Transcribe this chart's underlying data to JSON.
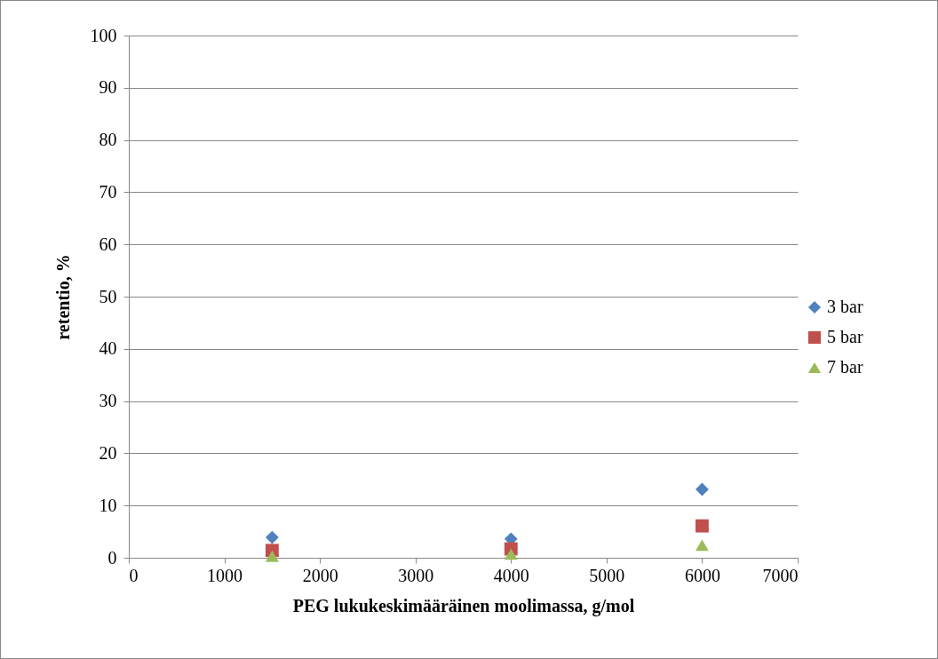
{
  "chart_data": {
    "type": "scatter",
    "xlabel": "PEG lukukeskimääräinen moolimassa,  g/mol",
    "ylabel": "retentio, %",
    "x": [
      1500,
      4000,
      6000
    ],
    "series": [
      {
        "name": "3 bar",
        "color": "#4f81bd",
        "marker": "diamond",
        "values": [
          3.9,
          3.6,
          13.1
        ]
      },
      {
        "name": "5 bar",
        "color": "#c0504d",
        "marker": "square",
        "values": [
          1.4,
          1.7,
          6.1
        ]
      },
      {
        "name": "7 bar",
        "color": "#9bbb59",
        "marker": "triangle",
        "values": [
          0.3,
          0.7,
          2.4
        ]
      }
    ],
    "xlim": [
      0,
      7000
    ],
    "xticks": [
      0,
      1000,
      2000,
      3000,
      4000,
      5000,
      6000,
      7000
    ],
    "ylim": [
      0,
      100
    ],
    "yticks": [
      0,
      10,
      20,
      30,
      40,
      50,
      60,
      70,
      80,
      90,
      100
    ],
    "grid": "y",
    "legend": "right"
  }
}
